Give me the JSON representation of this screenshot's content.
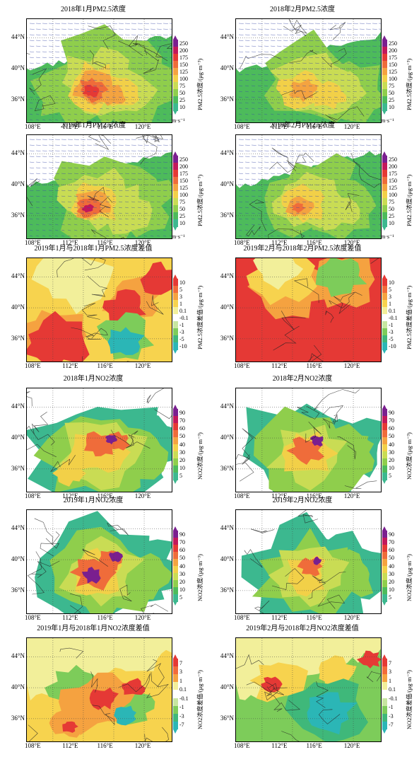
{
  "figure": {
    "sections": [
      {
        "name": "pm25",
        "panels": [
          {
            "id": "pm25-jan-2018",
            "title": "2018年1月PM2.5浓度",
            "kind": "conc",
            "wind": true,
            "cbar": "pm",
            "pattern": "jan18"
          },
          {
            "id": "pm25-feb-2018",
            "title": "2018年2月PM2.5浓度",
            "kind": "conc",
            "wind": true,
            "cbar": "pm",
            "pattern": "feb18"
          },
          {
            "id": "pm25-jan-2019",
            "title": "2019年1月PM2.5浓度",
            "kind": "conc",
            "wind": true,
            "cbar": "pm",
            "pattern": "jan19"
          },
          {
            "id": "pm25-feb-2019",
            "title": "2019年2月PM2.5浓度",
            "kind": "conc",
            "wind": true,
            "cbar": "pm",
            "pattern": "feb19"
          },
          {
            "id": "pm25-diff-jan",
            "title": "2019年1月与2018年1月PM2.5浓度差值",
            "kind": "diff",
            "wind": false,
            "cbar": "pmdiff",
            "pattern": "djan"
          },
          {
            "id": "pm25-diff-feb",
            "title": "2019年2月与2018年2月PM2.5浓度差值",
            "kind": "diff",
            "wind": false,
            "cbar": "pmdiff",
            "pattern": "dfeb"
          }
        ]
      },
      {
        "name": "no2",
        "panels": [
          {
            "id": "no2-jan-2018",
            "title": "2018年1月NO2浓度",
            "kind": "no2",
            "wind": false,
            "cbar": "no2",
            "pattern": "n1"
          },
          {
            "id": "no2-feb-2018",
            "title": "2018年2月NO2浓度",
            "kind": "no2",
            "wind": false,
            "cbar": "no2",
            "pattern": "n2"
          },
          {
            "id": "no2-jan-2019",
            "title": "2019年1月NO2浓度",
            "kind": "no2",
            "wind": false,
            "cbar": "no2",
            "pattern": "n3"
          },
          {
            "id": "no2-feb-2019",
            "title": "2019年2月NO2浓度",
            "kind": "no2",
            "wind": false,
            "cbar": "no2",
            "pattern": "n4"
          },
          {
            "id": "no2-diff-jan",
            "title": "2019年1月与2018年1月NO2浓度差值",
            "kind": "no2diff",
            "wind": false,
            "cbar": "no2diff",
            "pattern": "nd1"
          },
          {
            "id": "no2-diff-feb",
            "title": "2019年2月与2018年2月NO2浓度差值",
            "kind": "no2diff",
            "wind": false,
            "cbar": "no2diff",
            "pattern": "nd2"
          }
        ]
      }
    ],
    "lat_labels": [
      "44°N",
      "40°N",
      "36°N"
    ],
    "lon_labels": [
      "108°E",
      "112°E",
      "116°E",
      "120°E"
    ],
    "wind_unit": "m·s⁻¹",
    "colorbars": {
      "pm": {
        "unit": "PM2.5浓度/(μg·m⁻³)",
        "ticks": [
          "250",
          "200",
          "175",
          "150",
          "125",
          "100",
          "75",
          "50",
          "25",
          "10"
        ],
        "colors": [
          "#7a1f8f",
          "#c2185b",
          "#e53935",
          "#ef6c3a",
          "#f4a340",
          "#f2d048",
          "#c9dc54",
          "#8fce4c",
          "#4dbb5b",
          "#3cb88f"
        ]
      },
      "pmdiff": {
        "unit": "PM2.5浓度差值/(μg·m⁻³)",
        "ticks": [
          "10",
          "5",
          "3",
          "1",
          "0.1",
          "-0.1",
          "-1",
          "-3",
          "-5",
          "-10"
        ],
        "colors": [
          "#e53935",
          "#f26b3a",
          "#f5a240",
          "#f7d34e",
          "#f2ef9a",
          "#ffffff",
          "#c7e6a0",
          "#7dcc5a",
          "#3fb87a",
          "#2bb6b6"
        ]
      },
      "no2": {
        "unit": "NO2浓度/(μg·m⁻³)",
        "ticks": [
          "90",
          "70",
          "60",
          "50",
          "40",
          "30",
          "20",
          "10",
          "5"
        ],
        "colors": [
          "#7a1f8f",
          "#c2185b",
          "#e53935",
          "#ef6c3a",
          "#f4a340",
          "#f2d048",
          "#c9dc54",
          "#8fce4c",
          "#4dbb5b",
          "#3cb88f"
        ]
      },
      "no2diff": {
        "unit": "NO2浓度差值/(μg·m⁻³)",
        "ticks": [
          "7",
          "3",
          "1",
          "0.1",
          "-0.1",
          "-1",
          "-3",
          "-7"
        ],
        "colors": [
          "#e53935",
          "#f26b3a",
          "#f5a240",
          "#f2ef9a",
          "#ffffff",
          "#c7e6a0",
          "#7dcc5a",
          "#3fb87a",
          "#2bb6b6"
        ]
      }
    }
  }
}
